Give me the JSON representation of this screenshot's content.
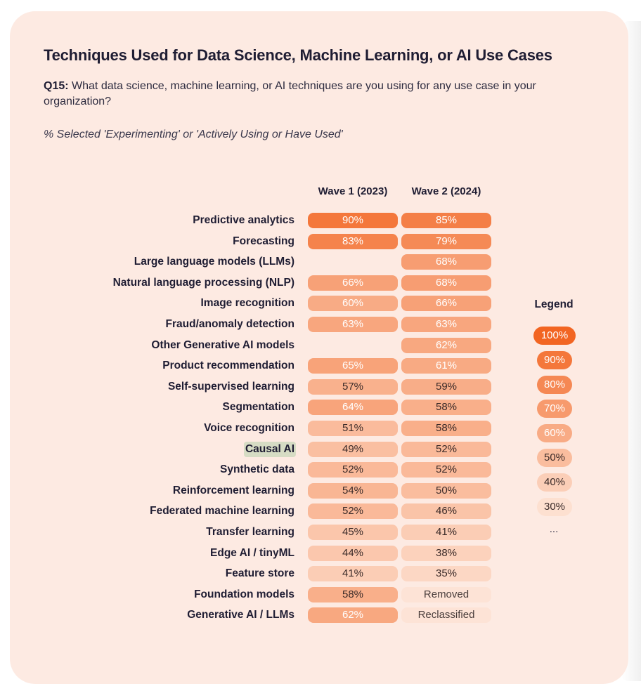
{
  "header": {
    "title": "Techniques Used for Data Science, Machine Learning, or AI Use Cases",
    "question_label": "Q15:",
    "question_text": "What data science, machine learning, or AI techniques are you using for any use case in your organization?",
    "subtitle": "% Selected 'Experimenting' or 'Actively Using or Have Used'"
  },
  "chart_data": {
    "type": "table",
    "title": "Techniques Used for Data Science, Machine Learning, or AI Use Cases",
    "columns": [
      "Wave 1 (2023)",
      "Wave 2 (2024)"
    ],
    "rows": [
      {
        "label": "Predictive analytics",
        "w1": "90%",
        "w2": "85%",
        "w1v": 90,
        "w2v": 85
      },
      {
        "label": "Forecasting",
        "w1": "83%",
        "w2": "79%",
        "w1v": 83,
        "w2v": 79
      },
      {
        "label": "Large language models (LLMs)",
        "w1": "",
        "w2": "68%",
        "w1v": null,
        "w2v": 68
      },
      {
        "label": "Natural language processing (NLP)",
        "w1": "66%",
        "w2": "68%",
        "w1v": 66,
        "w2v": 68
      },
      {
        "label": "Image recognition",
        "w1": "60%",
        "w2": "66%",
        "w1v": 60,
        "w2v": 66
      },
      {
        "label": "Fraud/anomaly detection",
        "w1": "63%",
        "w2": "63%",
        "w1v": 63,
        "w2v": 63
      },
      {
        "label": "Other Generative AI models",
        "w1": "",
        "w2": "62%",
        "w1v": null,
        "w2v": 62
      },
      {
        "label": "Product recommendation",
        "w1": "65%",
        "w2": "61%",
        "w1v": 65,
        "w2v": 61
      },
      {
        "label": "Self-supervised learning",
        "w1": "57%",
        "w2": "59%",
        "w1v": 57,
        "w2v": 59
      },
      {
        "label": "Segmentation",
        "w1": "64%",
        "w2": "58%",
        "w1v": 64,
        "w2v": 58
      },
      {
        "label": "Voice recognition",
        "w1": "51%",
        "w2": "58%",
        "w1v": 51,
        "w2v": 58
      },
      {
        "label": "Causal AI",
        "w1": "49%",
        "w2": "52%",
        "w1v": 49,
        "w2v": 52,
        "highlight": true
      },
      {
        "label": "Synthetic data",
        "w1": "52%",
        "w2": "52%",
        "w1v": 52,
        "w2v": 52
      },
      {
        "label": "Reinforcement learning",
        "w1": "54%",
        "w2": "50%",
        "w1v": 54,
        "w2v": 50
      },
      {
        "label": "Federated machine learning",
        "w1": "52%",
        "w2": "46%",
        "w1v": 52,
        "w2v": 46
      },
      {
        "label": "Transfer learning",
        "w1": "45%",
        "w2": "41%",
        "w1v": 45,
        "w2v": 41
      },
      {
        "label": "Edge AI / tinyML",
        "w1": "44%",
        "w2": "38%",
        "w1v": 44,
        "w2v": 38
      },
      {
        "label": "Feature store",
        "w1": "41%",
        "w2": "35%",
        "w1v": 41,
        "w2v": 35
      },
      {
        "label": "Foundation models",
        "w1": "58%",
        "w2": "Removed",
        "w1v": 58,
        "w2v": null
      },
      {
        "label": "Generative AI / LLMs",
        "w1": "62%",
        "w2": "Reclassified",
        "w1v": 62,
        "w2v": null
      }
    ],
    "legend": {
      "title": "Legend",
      "items": [
        {
          "label": "100%",
          "value": 100
        },
        {
          "label": "90%",
          "value": 90
        },
        {
          "label": "80%",
          "value": 80
        },
        {
          "label": "70%",
          "value": 70
        },
        {
          "label": "60%",
          "value": 60
        },
        {
          "label": "50%",
          "value": 50
        },
        {
          "label": "40%",
          "value": 40
        },
        {
          "label": "30%",
          "value": 30
        }
      ],
      "more": "..."
    },
    "colors": {
      "scale_high": "#f26522",
      "scale_low": "#fde0d0",
      "status_cell": "#fde3d6"
    }
  }
}
